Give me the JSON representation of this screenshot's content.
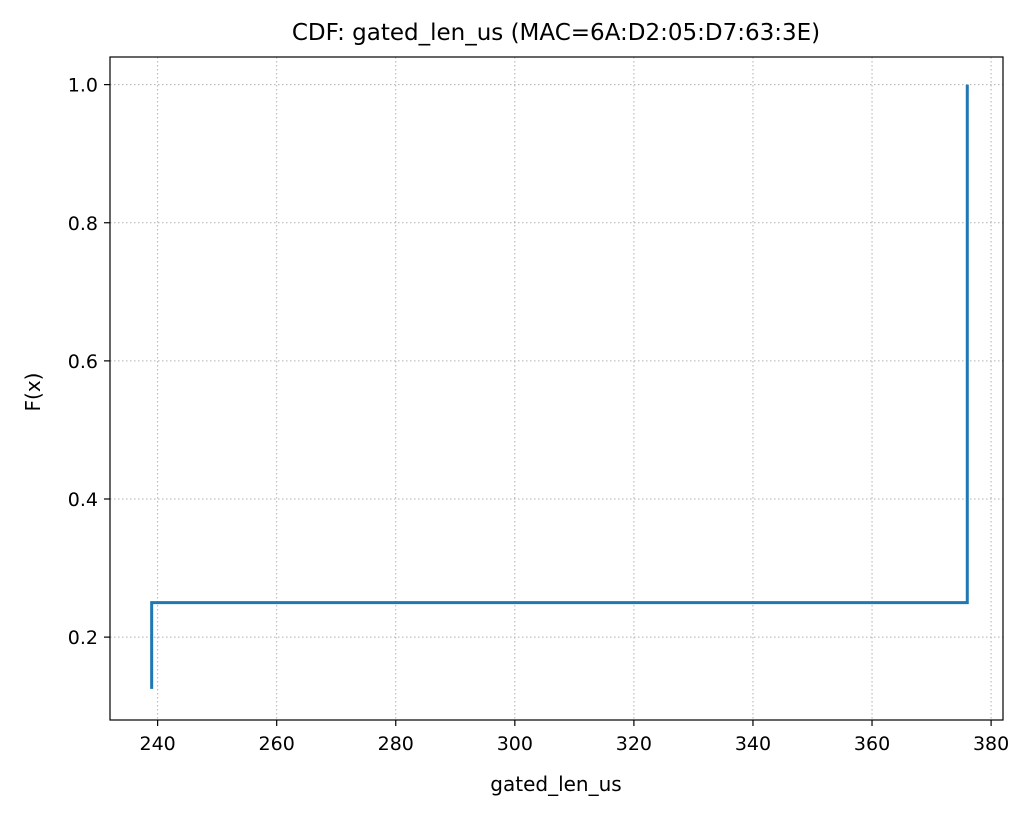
{
  "chart_data": {
    "type": "line",
    "title": "CDF: gated_len_us (MAC=6A:D2:05:D7:63:3E)",
    "xlabel": "gated_len_us",
    "ylabel": "F(x)",
    "xlim": [
      232,
      382
    ],
    "ylim": [
      0.08,
      1.04
    ],
    "x_ticks": [
      240,
      260,
      280,
      300,
      320,
      340,
      360,
      380
    ],
    "y_ticks": [
      0.2,
      0.4,
      0.6,
      0.8,
      1.0
    ],
    "x_tick_labels": [
      "240",
      "260",
      "280",
      "300",
      "320",
      "340",
      "360",
      "380"
    ],
    "y_tick_labels": [
      "0.2",
      "0.4",
      "0.6",
      "0.8",
      "1.0"
    ],
    "grid": true,
    "series": [
      {
        "color": "#1f77b4",
        "step": "post",
        "points": [
          {
            "x": 239,
            "y": 0.125
          },
          {
            "x": 239,
            "y": 0.25
          },
          {
            "x": 376,
            "y": 0.25
          },
          {
            "x": 376,
            "y": 1.0
          }
        ]
      }
    ]
  }
}
